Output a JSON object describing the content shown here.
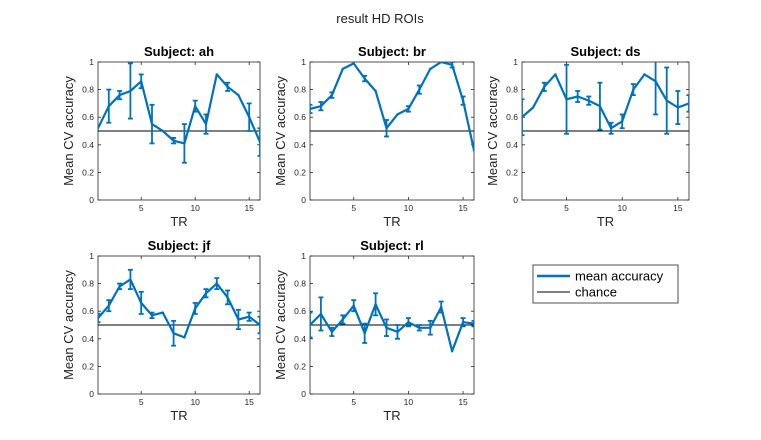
{
  "figure": {
    "title": "result HD ROIs"
  },
  "legend": {
    "placement": "right of bottom row",
    "entries": [
      {
        "label": "mean accuracy",
        "color": "#0072BD"
      },
      {
        "label": "chance",
        "color": "#000000"
      }
    ]
  },
  "chart_data": [
    {
      "type": "line",
      "title": "Subject: ah",
      "xlabel": "TR",
      "ylabel": "Mean CV accuracy",
      "xlim": [
        1,
        16
      ],
      "ylim": [
        0,
        1
      ],
      "xticks": [
        5,
        10,
        15
      ],
      "yticks": [
        0,
        0.2,
        0.4,
        0.6,
        0.8,
        1
      ],
      "chance": 0.5,
      "series": [
        {
          "name": "mean accuracy",
          "x": [
            1,
            2,
            3,
            4,
            5,
            6,
            7,
            8,
            9,
            10,
            11,
            12,
            13,
            14,
            15,
            16
          ],
          "values": [
            0.52,
            0.68,
            0.76,
            0.79,
            0.86,
            0.55,
            0.5,
            0.43,
            0.41,
            0.68,
            0.55,
            0.91,
            0.82,
            0.76,
            0.6,
            0.42
          ],
          "err": [
            0,
            0.12,
            0.03,
            0.2,
            0.05,
            0.14,
            0,
            0.02,
            0.14,
            0.04,
            0.07,
            0,
            0.03,
            0,
            0.1,
            0.1
          ]
        }
      ]
    },
    {
      "type": "line",
      "title": "Subject: br",
      "xlabel": "TR",
      "ylabel": "Mean CV accuracy",
      "xlim": [
        1,
        16
      ],
      "ylim": [
        0,
        1
      ],
      "xticks": [
        5,
        10,
        15
      ],
      "yticks": [
        0,
        0.2,
        0.4,
        0.6,
        0.8,
        1
      ],
      "chance": 0.5,
      "series": [
        {
          "name": "mean accuracy",
          "x": [
            1,
            2,
            3,
            4,
            5,
            6,
            7,
            8,
            9,
            10,
            11,
            12,
            13,
            14,
            15,
            16
          ],
          "values": [
            0.66,
            0.68,
            0.76,
            0.95,
            0.99,
            0.88,
            0.79,
            0.52,
            0.62,
            0.66,
            0.8,
            0.95,
            1.0,
            0.98,
            0.72,
            0.36
          ],
          "err": [
            0.03,
            0.03,
            0.02,
            0,
            0,
            0.02,
            0,
            0.06,
            0,
            0.02,
            0.03,
            0,
            0,
            0.02,
            0.03,
            0
          ]
        }
      ]
    },
    {
      "type": "line",
      "title": "Subject: ds",
      "xlabel": "TR",
      "ylabel": "Mean CV accuracy",
      "xlim": [
        1,
        16
      ],
      "ylim": [
        0,
        1
      ],
      "xticks": [
        5,
        10,
        15
      ],
      "yticks": [
        0,
        0.2,
        0.4,
        0.6,
        0.8,
        1
      ],
      "chance": 0.5,
      "series": [
        {
          "name": "mean accuracy",
          "x": [
            1,
            2,
            3,
            4,
            5,
            6,
            7,
            8,
            9,
            10,
            11,
            12,
            13,
            14,
            15,
            16
          ],
          "values": [
            0.6,
            0.67,
            0.82,
            0.91,
            0.73,
            0.75,
            0.72,
            0.68,
            0.52,
            0.57,
            0.8,
            0.91,
            0.86,
            0.72,
            0.67,
            0.7
          ],
          "err": [
            0.13,
            0,
            0.03,
            0,
            0.25,
            0.04,
            0.03,
            0.17,
            0.04,
            0.05,
            0.04,
            0,
            0.24,
            0.24,
            0.12,
            0.06
          ]
        }
      ]
    },
    {
      "type": "line",
      "title": "Subject: jf",
      "xlabel": "TR",
      "ylabel": "Mean CV accuracy",
      "xlim": [
        1,
        16
      ],
      "ylim": [
        0,
        1
      ],
      "xticks": [
        5,
        10,
        15
      ],
      "yticks": [
        0,
        0.2,
        0.4,
        0.6,
        0.8,
        1
      ],
      "chance": 0.5,
      "series": [
        {
          "name": "mean accuracy",
          "x": [
            1,
            2,
            3,
            4,
            5,
            6,
            7,
            8,
            9,
            10,
            11,
            12,
            13,
            14,
            15,
            16
          ],
          "values": [
            0.55,
            0.64,
            0.78,
            0.83,
            0.66,
            0.57,
            0.59,
            0.44,
            0.41,
            0.62,
            0.73,
            0.8,
            0.7,
            0.54,
            0.56,
            0.5
          ],
          "err": [
            0.03,
            0.04,
            0.02,
            0.07,
            0.08,
            0.02,
            0,
            0.09,
            0,
            0.04,
            0.03,
            0.04,
            0.05,
            0.07,
            0.03,
            0.06
          ]
        }
      ]
    },
    {
      "type": "line",
      "title": "Subject: rl",
      "xlabel": "TR",
      "ylabel": "Mean CV accuracy",
      "xlim": [
        1,
        16
      ],
      "ylim": [
        0,
        1
      ],
      "xticks": [
        5,
        10,
        15
      ],
      "yticks": [
        0,
        0.2,
        0.4,
        0.6,
        0.8,
        1
      ],
      "chance": 0.5,
      "series": [
        {
          "name": "mean accuracy",
          "x": [
            1,
            2,
            3,
            4,
            5,
            6,
            7,
            8,
            9,
            10,
            11,
            12,
            13,
            14,
            15,
            16
          ],
          "values": [
            0.5,
            0.58,
            0.45,
            0.54,
            0.64,
            0.44,
            0.65,
            0.48,
            0.45,
            0.52,
            0.48,
            0.48,
            0.63,
            0.31,
            0.52,
            0.51
          ],
          "err": [
            0.09,
            0.12,
            0.03,
            0.03,
            0.04,
            0.07,
            0.08,
            0.06,
            0.05,
            0.03,
            0.02,
            0.05,
            0.04,
            0,
            0.03,
            0.02
          ]
        }
      ]
    }
  ]
}
